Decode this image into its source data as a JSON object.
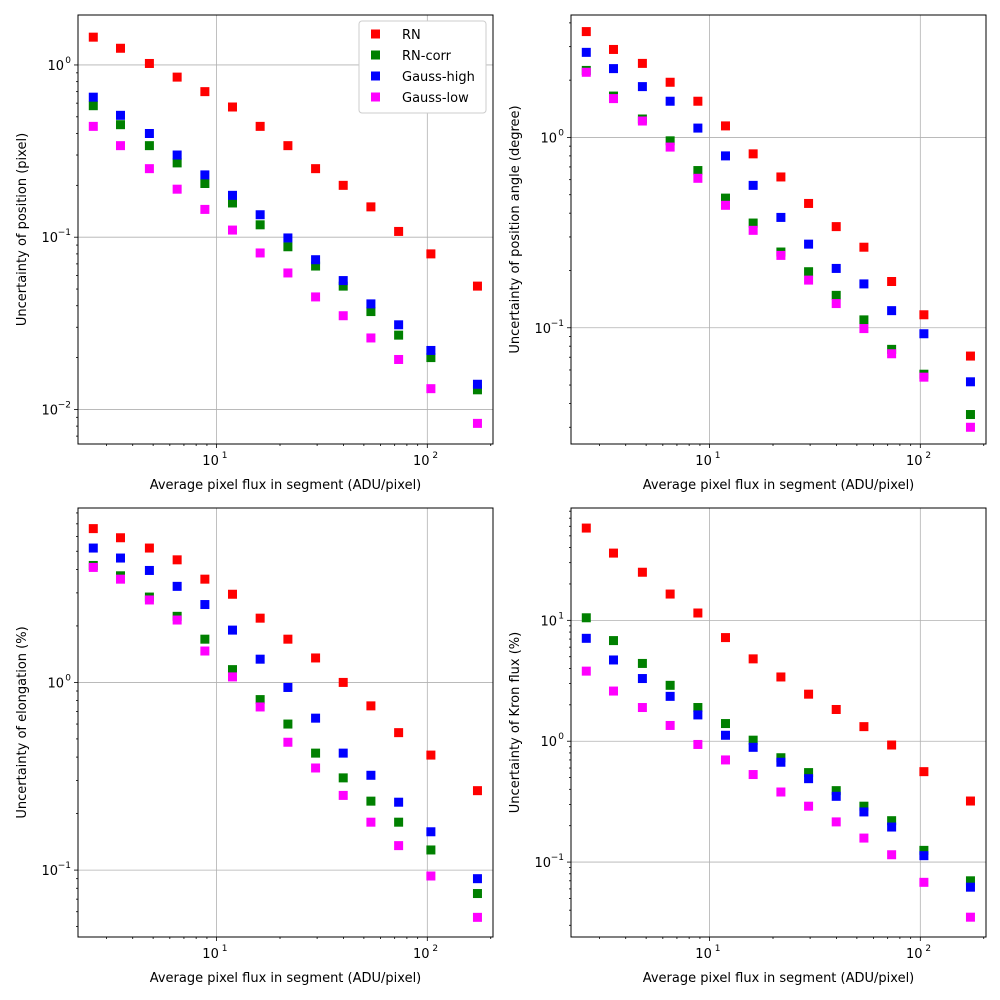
{
  "colors": {
    "RN": "#ff0000",
    "RN-corr": "#008000",
    "Gauss-high": "#0000ff",
    "Gauss-low": "#ff00ff"
  },
  "chart_data": [
    {
      "type": "scatter",
      "xscale": "log",
      "yscale": "log",
      "xlabel": "Average pixel flux in segment (ADU/pixel)",
      "ylabel": "Uncertainty of position (pixel)",
      "xlim": [
        2.2,
        205
      ],
      "ylim": [
        0.0063,
        1.95
      ],
      "legend": "top-right",
      "x": [
        2.6,
        3.5,
        4.8,
        6.5,
        8.8,
        11.9,
        16.1,
        21.8,
        29.5,
        39.9,
        54.0,
        73.1,
        104.0,
        173.0
      ],
      "series": [
        {
          "name": "RN",
          "values": [
            1.45,
            1.25,
            1.02,
            0.85,
            0.7,
            0.57,
            0.44,
            0.34,
            0.25,
            0.2,
            0.15,
            0.108,
            0.08,
            0.052
          ]
        },
        {
          "name": "RN-corr",
          "values": [
            0.58,
            0.45,
            0.34,
            0.27,
            0.205,
            0.158,
            0.118,
            0.088,
            0.068,
            0.052,
            0.037,
            0.027,
            0.02,
            0.013
          ]
        },
        {
          "name": "Gauss-high",
          "values": [
            0.65,
            0.51,
            0.4,
            0.3,
            0.23,
            0.175,
            0.135,
            0.099,
            0.074,
            0.056,
            0.041,
            0.031,
            0.022,
            0.014
          ]
        },
        {
          "name": "Gauss-low",
          "values": [
            0.44,
            0.34,
            0.25,
            0.19,
            0.145,
            0.11,
            0.081,
            0.062,
            0.045,
            0.035,
            0.026,
            0.0195,
            0.0132,
            0.0083
          ]
        }
      ],
      "xticks": [
        {
          "v": 10,
          "label": "10",
          "exp": "1"
        },
        {
          "v": 100,
          "label": "10",
          "exp": "2"
        }
      ],
      "yticks": [
        {
          "v": 0.01,
          "label": "10",
          "exp": "−2"
        },
        {
          "v": 0.1,
          "label": "10",
          "exp": "−1"
        },
        {
          "v": 1,
          "label": "10",
          "exp": "0"
        }
      ]
    },
    {
      "type": "scatter",
      "xscale": "log",
      "yscale": "log",
      "xlabel": "Average pixel flux in segment (ADU/pixel)",
      "ylabel": "Uncertainty of position angle (degree)",
      "xlim": [
        2.2,
        205
      ],
      "ylim": [
        0.0245,
        4.4
      ],
      "legend": "none",
      "x": [
        2.6,
        3.5,
        4.8,
        6.5,
        8.8,
        11.9,
        16.1,
        21.8,
        29.5,
        39.9,
        54.0,
        73.1,
        104.0,
        173.0
      ],
      "series": [
        {
          "name": "RN",
          "values": [
            3.6,
            2.9,
            2.45,
            1.95,
            1.55,
            1.15,
            0.82,
            0.62,
            0.45,
            0.34,
            0.265,
            0.175,
            0.117,
            0.071
          ]
        },
        {
          "name": "RN-corr",
          "values": [
            2.25,
            1.65,
            1.25,
            0.96,
            0.67,
            0.48,
            0.355,
            0.25,
            0.197,
            0.148,
            0.11,
            0.077,
            0.057,
            0.035
          ]
        },
        {
          "name": "Gauss-high",
          "values": [
            2.8,
            2.3,
            1.85,
            1.55,
            1.12,
            0.8,
            0.56,
            0.38,
            0.275,
            0.205,
            0.17,
            0.123,
            0.093,
            0.052
          ]
        },
        {
          "name": "Gauss-low",
          "values": [
            2.2,
            1.6,
            1.22,
            0.89,
            0.61,
            0.44,
            0.325,
            0.24,
            0.178,
            0.134,
            0.099,
            0.073,
            0.055,
            0.03
          ]
        }
      ],
      "xticks": [
        {
          "v": 10,
          "label": "10",
          "exp": "1"
        },
        {
          "v": 100,
          "label": "10",
          "exp": "2"
        }
      ],
      "yticks": [
        {
          "v": 0.1,
          "label": "10",
          "exp": "−1"
        },
        {
          "v": 1,
          "label": "10",
          "exp": "0"
        }
      ]
    },
    {
      "type": "scatter",
      "xscale": "log",
      "yscale": "log",
      "xlabel": "Average pixel flux in segment (ADU/pixel)",
      "ylabel": "Uncertainty of elongation (%)",
      "xlim": [
        2.2,
        205
      ],
      "ylim": [
        0.044,
        8.5
      ],
      "legend": "none",
      "x": [
        2.6,
        3.5,
        4.8,
        6.5,
        8.8,
        11.9,
        16.1,
        21.8,
        29.5,
        39.9,
        54.0,
        73.1,
        104.0,
        173.0
      ],
      "series": [
        {
          "name": "RN",
          "values": [
            6.6,
            5.9,
            5.2,
            4.5,
            3.55,
            2.95,
            2.2,
            1.7,
            1.35,
            1.0,
            0.75,
            0.54,
            0.41,
            0.265
          ]
        },
        {
          "name": "RN-corr",
          "values": [
            4.2,
            3.7,
            2.85,
            2.25,
            1.7,
            1.17,
            0.81,
            0.6,
            0.42,
            0.31,
            0.233,
            0.18,
            0.128,
            0.075
          ]
        },
        {
          "name": "Gauss-high",
          "values": [
            5.2,
            4.6,
            3.95,
            3.25,
            2.6,
            1.9,
            1.33,
            0.94,
            0.645,
            0.42,
            0.32,
            0.23,
            0.16,
            0.09
          ]
        },
        {
          "name": "Gauss-low",
          "values": [
            4.1,
            3.55,
            2.75,
            2.15,
            1.47,
            1.07,
            0.74,
            0.48,
            0.35,
            0.25,
            0.18,
            0.135,
            0.093,
            0.056
          ]
        }
      ],
      "xticks": [
        {
          "v": 10,
          "label": "10",
          "exp": "1"
        },
        {
          "v": 100,
          "label": "10",
          "exp": "2"
        }
      ],
      "yticks": [
        {
          "v": 0.1,
          "label": "10",
          "exp": "−1"
        },
        {
          "v": 1,
          "label": "10",
          "exp": "0"
        }
      ]
    },
    {
      "type": "scatter",
      "xscale": "log",
      "yscale": "log",
      "xlabel": "Average pixel flux in segment (ADU/pixel)",
      "ylabel": "Uncertainty of Kron flux (%)",
      "xlim": [
        2.2,
        205
      ],
      "ylim": [
        0.024,
        85
      ],
      "legend": "none",
      "x": [
        2.6,
        3.5,
        4.8,
        6.5,
        8.8,
        11.9,
        16.1,
        21.8,
        29.5,
        39.9,
        54.0,
        73.1,
        104.0,
        173.0
      ],
      "series": [
        {
          "name": "RN",
          "values": [
            58,
            36,
            25,
            16.5,
            11.5,
            7.2,
            4.8,
            3.4,
            2.45,
            1.83,
            1.32,
            0.93,
            0.56,
            0.32
          ]
        },
        {
          "name": "RN-corr",
          "values": [
            10.5,
            6.8,
            4.4,
            2.9,
            1.9,
            1.4,
            1.02,
            0.73,
            0.55,
            0.39,
            0.29,
            0.22,
            0.125,
            0.07
          ]
        },
        {
          "name": "Gauss-high",
          "values": [
            7.1,
            4.7,
            3.3,
            2.35,
            1.65,
            1.12,
            0.89,
            0.67,
            0.49,
            0.35,
            0.26,
            0.195,
            0.113,
            0.062
          ]
        },
        {
          "name": "Gauss-low",
          "values": [
            3.8,
            2.6,
            1.9,
            1.35,
            0.94,
            0.7,
            0.53,
            0.38,
            0.29,
            0.215,
            0.158,
            0.115,
            0.068,
            0.035
          ]
        }
      ],
      "xticks": [
        {
          "v": 10,
          "label": "10",
          "exp": "1"
        },
        {
          "v": 100,
          "label": "10",
          "exp": "2"
        }
      ],
      "yticks": [
        {
          "v": 0.1,
          "label": "10",
          "exp": "−1"
        },
        {
          "v": 1,
          "label": "10",
          "exp": "0"
        },
        {
          "v": 10,
          "label": "10",
          "exp": "1"
        }
      ]
    }
  ]
}
